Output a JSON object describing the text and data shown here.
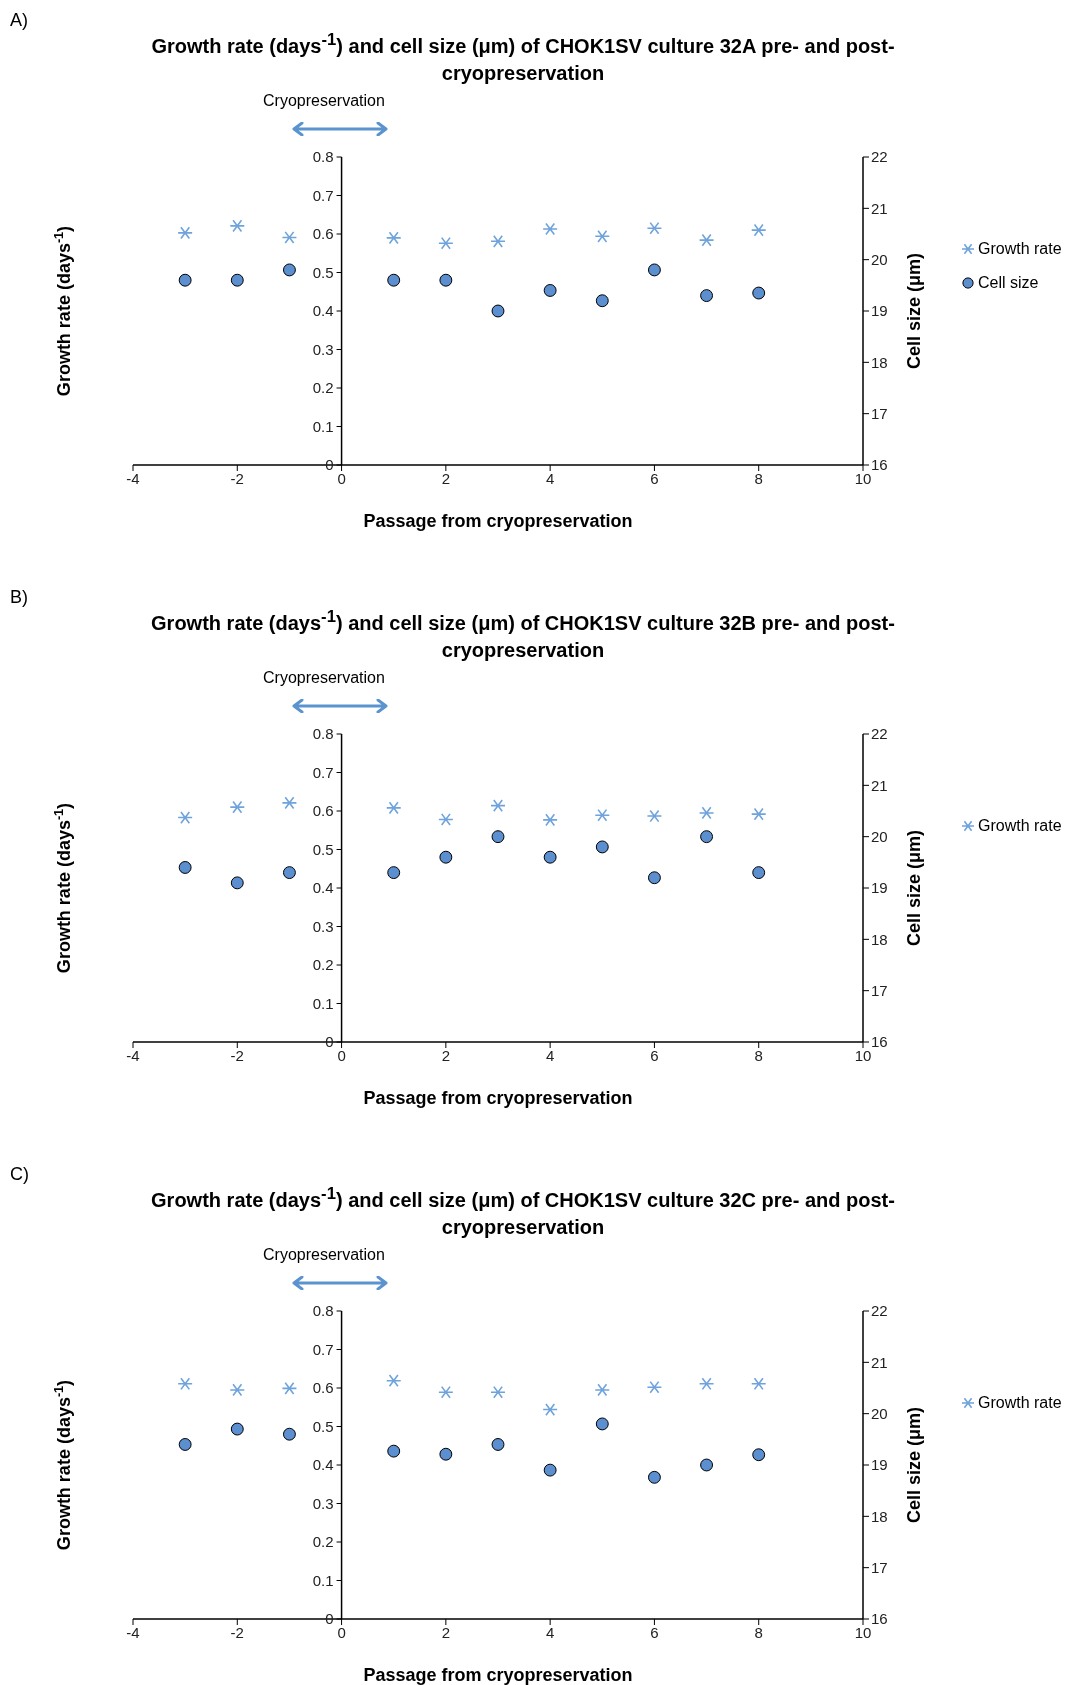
{
  "chart_data": [
    {
      "type": "scatter",
      "title": "Growth rate (days$^{-1}$) and cell size (μm) of CHOK1SV culture 32A pre- and post- cryopreservation",
      "annotations": [
        "A)",
        "Cryopreservation"
      ],
      "xlabel": "Passage from cryopreservation",
      "ylabel": "Growth rate (days$^{-1}$)",
      "y2label": "Cell size (μm)",
      "x": [
        -3,
        -2,
        -1,
        1,
        2,
        3,
        4,
        5,
        6,
        7,
        8
      ],
      "xlim": [
        -4,
        10
      ],
      "xticks": [
        -4,
        -2,
        0,
        2,
        4,
        6,
        8,
        10
      ],
      "ylim": [
        0,
        0.8
      ],
      "yticks": [
        0,
        0.1,
        0.2,
        0.3,
        0.4,
        0.5,
        0.6,
        0.7,
        0.8
      ],
      "y2lim": [
        16,
        22
      ],
      "y2ticks": [
        16,
        17,
        18,
        19,
        20,
        21,
        22
      ],
      "legend": "right",
      "grid": false,
      "series": [
        {
          "name": "Growth rate",
          "color": "#6fa3dc",
          "marker": "cross",
          "values": [
            0.603,
            0.621,
            0.591,
            0.59,
            0.576,
            0.581,
            0.613,
            0.594,
            0.615,
            0.584,
            0.61
          ]
        },
        {
          "name": "Cell size",
          "color": "#5b8fcf",
          "marker": "circle",
          "axis": "y2",
          "values": [
            19.6,
            19.6,
            19.8,
            19.6,
            19.6,
            19.0,
            19.4,
            19.2,
            19.8,
            19.3,
            19.35
          ]
        }
      ]
    },
    {
      "type": "scatter",
      "title": "Growth rate (days$^{-1}$) and cell size (μm) of CHOK1SV culture 32B pre- and post- cryopreservation",
      "annotations": [
        "B)",
        "Cryopreservation"
      ],
      "xlabel": "Passage from cryopreservation",
      "ylabel": "Growth rate (days$^{-1}$)",
      "y2label": "Cell size (μm)",
      "x": [
        -3,
        -2,
        -1,
        1,
        2,
        3,
        4,
        5,
        6,
        7,
        8
      ],
      "xlim": [
        -4,
        10
      ],
      "xticks": [
        -4,
        -2,
        0,
        2,
        4,
        6,
        8,
        10
      ],
      "ylim": [
        0,
        0.8
      ],
      "yticks": [
        0,
        0.1,
        0.2,
        0.3,
        0.4,
        0.5,
        0.6,
        0.7,
        0.8
      ],
      "y2lim": [
        16,
        22
      ],
      "y2ticks": [
        16,
        17,
        18,
        19,
        20,
        21,
        22
      ],
      "legend": "right",
      "grid": false,
      "series": [
        {
          "name": "Growth rate",
          "color": "#6fa3dc",
          "marker": "cross",
          "values": [
            0.583,
            0.61,
            0.621,
            0.608,
            0.578,
            0.614,
            0.577,
            0.589,
            0.587,
            0.595,
            0.592
          ]
        },
        {
          "color": "#5b8fcf",
          "marker": "circle",
          "axis": "y2",
          "values": [
            19.4,
            19.1,
            19.3,
            19.3,
            19.6,
            20.0,
            19.6,
            19.8,
            19.2,
            20.0,
            19.3
          ]
        }
      ]
    },
    {
      "type": "scatter",
      "title": "Growth rate (days$^{-1}$) and cell size (μm) of CHOK1SV culture 32C pre- and post- cryopreservation",
      "annotations": [
        "C)",
        "Cryopreservation"
      ],
      "xlabel": "Passage from cryopreservation",
      "ylabel": "Growth rate (days$^{-1}$)",
      "y2label": "Cell size (μm)",
      "x": [
        -3,
        -2,
        -1,
        1,
        2,
        3,
        4,
        5,
        6,
        7,
        8
      ],
      "xlim": [
        -4,
        10
      ],
      "xticks": [
        -4,
        -2,
        0,
        2,
        4,
        6,
        8,
        10
      ],
      "ylim": [
        0,
        0.8
      ],
      "yticks": [
        0,
        0.1,
        0.2,
        0.3,
        0.4,
        0.5,
        0.6,
        0.7,
        0.8
      ],
      "y2lim": [
        16,
        22
      ],
      "y2ticks": [
        16,
        17,
        18,
        19,
        20,
        21,
        22
      ],
      "legend": "right",
      "grid": false,
      "series": [
        {
          "name": "Growth rate",
          "color": "#6fa3dc",
          "marker": "cross",
          "values": [
            0.611,
            0.595,
            0.599,
            0.619,
            0.589,
            0.589,
            0.544,
            0.595,
            0.602,
            0.611,
            0.611
          ]
        },
        {
          "color": "#5b8fcf",
          "marker": "circle",
          "axis": "y2",
          "values": [
            19.4,
            19.7,
            19.6,
            19.27,
            19.21,
            19.4,
            18.9,
            19.8,
            18.76,
            19.0,
            19.2
          ]
        }
      ]
    }
  ]
}
